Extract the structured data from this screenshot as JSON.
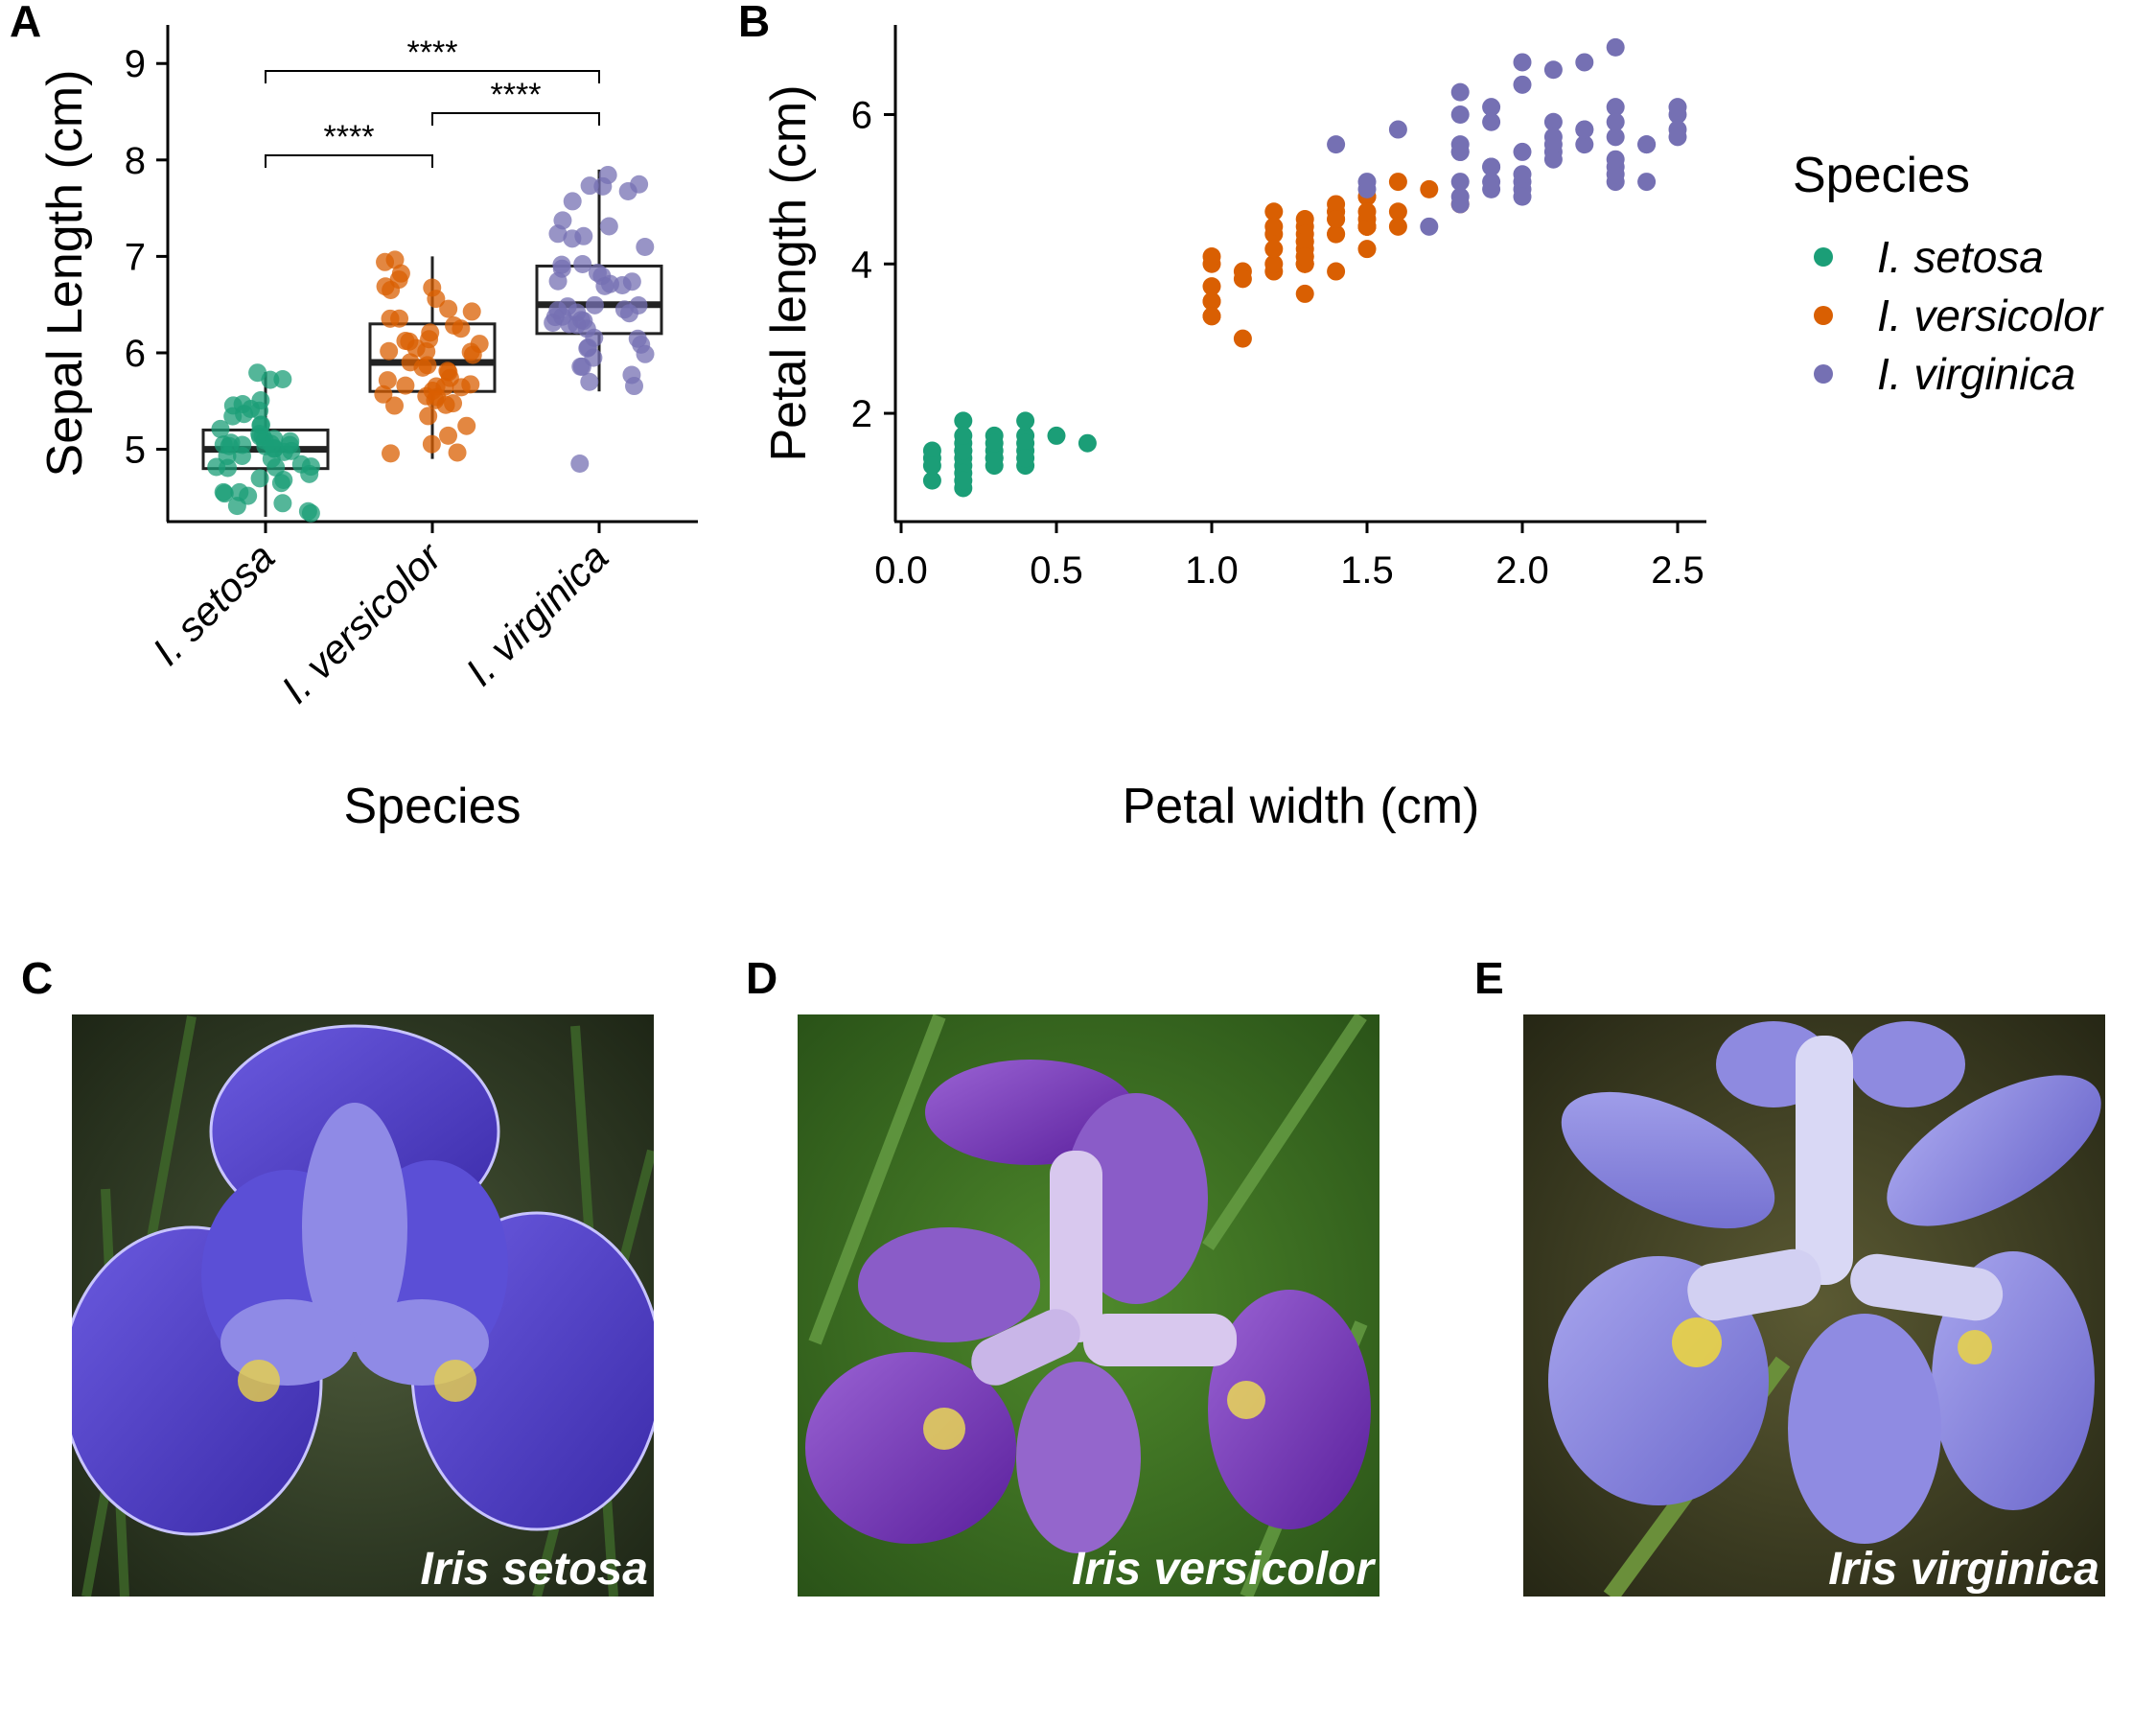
{
  "colors": {
    "setosa": "#1b9e77",
    "versicolor": "#d95f02",
    "virginica": "#7570b3"
  },
  "chart_data": [
    {
      "type": "box",
      "panel": "A",
      "xlabel": "Species",
      "ylabel": "Sepal Length (cm)",
      "ylim": [
        4.25,
        9.4
      ],
      "yticks": [
        5,
        6,
        7,
        8,
        9
      ],
      "grid": false,
      "categories": [
        "I. setosa",
        "I. versicolor",
        "I. virginica"
      ],
      "boxes": [
        {
          "min": 4.3,
          "q1": 4.8,
          "median": 5.0,
          "q3": 5.2,
          "max": 5.8
        },
        {
          "min": 4.9,
          "q1": 5.6,
          "median": 5.9,
          "q3": 6.3,
          "max": 7.0
        },
        {
          "min": 5.6,
          "q1": 6.2,
          "median": 6.5,
          "q3": 6.9,
          "max": 7.9
        }
      ],
      "outliers": [
        {
          "category": "I. virginica",
          "value": 4.9
        }
      ],
      "points": [
        [
          5.1,
          4.9,
          4.7,
          4.6,
          5.0,
          5.4,
          4.6,
          5.0,
          4.4,
          4.9,
          5.4,
          4.8,
          4.8,
          4.3,
          5.8,
          5.7,
          5.4,
          5.1,
          5.7,
          5.1,
          5.4,
          5.1,
          4.6,
          5.1,
          4.8,
          5.0,
          5.0,
          5.2,
          5.2,
          4.7,
          4.8,
          5.4,
          5.2,
          5.5,
          4.9,
          5.0,
          5.5,
          4.9,
          4.4,
          5.1,
          5.0,
          4.5,
          4.4,
          5.0,
          5.1,
          4.8,
          5.1,
          4.6,
          5.3,
          5.0
        ],
        [
          7.0,
          6.4,
          6.9,
          5.5,
          6.5,
          5.7,
          6.3,
          4.9,
          6.6,
          5.2,
          5.0,
          5.9,
          6.0,
          6.1,
          5.6,
          6.7,
          5.6,
          5.8,
          6.2,
          5.6,
          5.9,
          6.1,
          6.3,
          6.1,
          6.4,
          6.6,
          6.8,
          6.7,
          6.0,
          5.7,
          5.5,
          5.5,
          5.8,
          6.0,
          5.4,
          6.0,
          6.7,
          6.3,
          5.6,
          5.5,
          5.5,
          6.1,
          5.8,
          5.0,
          5.6,
          5.7,
          5.7,
          6.2,
          5.1,
          5.7
        ],
        [
          6.3,
          5.8,
          7.1,
          6.3,
          6.5,
          7.6,
          4.9,
          7.3,
          6.7,
          7.2,
          6.5,
          6.4,
          6.8,
          5.7,
          5.8,
          6.4,
          6.5,
          7.7,
          7.7,
          6.0,
          6.9,
          5.6,
          7.7,
          6.3,
          6.7,
          7.2,
          6.2,
          6.1,
          6.4,
          7.2,
          7.4,
          7.9,
          6.4,
          6.3,
          6.1,
          7.7,
          6.3,
          6.4,
          6.0,
          6.9,
          6.7,
          6.9,
          5.8,
          6.8,
          6.7,
          6.7,
          6.3,
          6.5,
          6.2,
          5.9
        ]
      ],
      "comparisons": [
        {
          "from": "I. setosa",
          "to": "I. versicolor",
          "label": "****"
        },
        {
          "from": "I. versicolor",
          "to": "I. virginica",
          "label": "****"
        },
        {
          "from": "I. setosa",
          "to": "I. virginica",
          "label": "****"
        }
      ]
    },
    {
      "type": "scatter",
      "panel": "B",
      "xlabel": "Petal width (cm)",
      "ylabel": "Petal length (cm)",
      "xlim": [
        -0.01,
        2.62
      ],
      "ylim": [
        0.55,
        7.2
      ],
      "xticks": [
        "0.0",
        "0.5",
        "1.0",
        "1.5",
        "2.0",
        "2.5"
      ],
      "yticks": [
        2,
        4,
        6
      ],
      "grid": false,
      "legend": {
        "title": "Species",
        "placement": "right",
        "entries": [
          "I. setosa",
          "I. versicolor",
          "I. virginica"
        ]
      },
      "series": [
        {
          "name": "I. setosa",
          "points": [
            [
              0.2,
              1.4
            ],
            [
              0.2,
              1.3
            ],
            [
              0.2,
              1.5
            ],
            [
              0.4,
              1.7
            ],
            [
              0.3,
              1.4
            ],
            [
              0.2,
              1.6
            ],
            [
              0.1,
              1.5
            ],
            [
              0.1,
              1.1
            ],
            [
              0.2,
              1.2
            ],
            [
              0.4,
              1.5
            ],
            [
              0.4,
              1.3
            ],
            [
              0.3,
              1.7
            ],
            [
              0.3,
              1.5
            ],
            [
              0.2,
              1.0
            ],
            [
              0.5,
              1.7
            ],
            [
              0.2,
              1.9
            ],
            [
              0.4,
              1.6
            ],
            [
              0.2,
              1.5
            ],
            [
              0.1,
              1.4
            ],
            [
              0.6,
              1.6
            ],
            [
              0.3,
              1.3
            ],
            [
              0.2,
              1.1
            ],
            [
              0.1,
              1.3
            ],
            [
              0.3,
              1.4
            ],
            [
              0.2,
              1.7
            ],
            [
              0.4,
              1.9
            ],
            [
              0.3,
              1.6
            ],
            [
              0.4,
              1.4
            ]
          ]
        },
        {
          "name": "I. versicolor",
          "points": [
            [
              1.4,
              4.7
            ],
            [
              1.5,
              4.5
            ],
            [
              1.5,
              4.9
            ],
            [
              1.3,
              4.0
            ],
            [
              1.5,
              4.6
            ],
            [
              1.3,
              4.5
            ],
            [
              1.6,
              4.7
            ],
            [
              1.0,
              3.3
            ],
            [
              1.3,
              4.6
            ],
            [
              1.4,
              3.9
            ],
            [
              1.0,
              3.5
            ],
            [
              1.5,
              4.2
            ],
            [
              1.0,
              4.0
            ],
            [
              1.4,
              4.7
            ],
            [
              1.3,
              3.6
            ],
            [
              1.4,
              4.4
            ],
            [
              1.5,
              4.5
            ],
            [
              1.0,
              4.1
            ],
            [
              1.5,
              4.5
            ],
            [
              1.1,
              3.9
            ],
            [
              1.8,
              4.8
            ],
            [
              1.3,
              4.0
            ],
            [
              1.5,
              4.9
            ],
            [
              1.2,
              4.7
            ],
            [
              1.3,
              4.3
            ],
            [
              1.4,
              4.4
            ],
            [
              1.4,
              4.8
            ],
            [
              1.7,
              5.0
            ],
            [
              1.5,
              4.5
            ],
            [
              1.0,
              3.5
            ],
            [
              1.1,
              3.8
            ],
            [
              1.0,
              3.7
            ],
            [
              1.2,
              3.9
            ],
            [
              1.6,
              5.1
            ],
            [
              1.5,
              4.5
            ],
            [
              1.6,
              4.5
            ],
            [
              1.5,
              4.7
            ],
            [
              1.3,
              4.4
            ],
            [
              1.3,
              4.1
            ],
            [
              1.3,
              4.0
            ],
            [
              1.2,
              4.4
            ],
            [
              1.4,
              4.6
            ],
            [
              1.2,
              4.0
            ],
            [
              1.0,
              3.3
            ],
            [
              1.3,
              4.2
            ],
            [
              1.2,
              4.2
            ],
            [
              1.3,
              4.3
            ],
            [
              1.1,
              3.0
            ],
            [
              1.3,
              4.1
            ],
            [
              1.2,
              4.5
            ],
            [
              1.4,
              4.6
            ]
          ]
        },
        {
          "name": "I. virginica",
          "points": [
            [
              2.5,
              6.0
            ],
            [
              1.9,
              5.1
            ],
            [
              2.1,
              5.9
            ],
            [
              1.8,
              5.6
            ],
            [
              2.2,
              5.8
            ],
            [
              2.1,
              6.6
            ],
            [
              1.7,
              4.5
            ],
            [
              1.8,
              6.3
            ],
            [
              2.5,
              5.8
            ],
            [
              2.0,
              5.1
            ],
            [
              1.9,
              5.3
            ],
            [
              2.1,
              5.5
            ],
            [
              2.0,
              5.0
            ],
            [
              2.4,
              5.1
            ],
            [
              2.3,
              5.3
            ],
            [
              1.8,
              5.5
            ],
            [
              2.2,
              6.7
            ],
            [
              2.3,
              6.9
            ],
            [
              1.5,
              5.0
            ],
            [
              2.3,
              5.7
            ],
            [
              2.0,
              4.9
            ],
            [
              2.0,
              6.7
            ],
            [
              1.8,
              4.9
            ],
            [
              2.1,
              5.7
            ],
            [
              1.8,
              6.0
            ],
            [
              1.8,
              4.8
            ],
            [
              1.6,
              5.8
            ],
            [
              1.9,
              6.1
            ],
            [
              2.0,
              6.4
            ],
            [
              2.2,
              5.6
            ],
            [
              1.5,
              5.1
            ],
            [
              1.4,
              5.6
            ],
            [
              2.3,
              6.1
            ],
            [
              2.4,
              5.6
            ],
            [
              1.8,
              5.5
            ],
            [
              2.1,
              5.4
            ],
            [
              2.4,
              5.6
            ],
            [
              2.3,
              5.1
            ],
            [
              1.9,
              5.9
            ],
            [
              2.5,
              5.7
            ],
            [
              2.3,
              5.2
            ],
            [
              1.9,
              5.0
            ],
            [
              2.0,
              5.2
            ],
            [
              2.3,
              5.4
            ],
            [
              1.8,
              5.1
            ],
            [
              2.2,
              5.8
            ],
            [
              1.9,
              5.3
            ],
            [
              2.0,
              5.5
            ],
            [
              2.1,
              5.6
            ],
            [
              2.5,
              6.1
            ],
            [
              2.3,
              5.9
            ]
          ]
        }
      ]
    }
  ],
  "photos": [
    {
      "panel": "C",
      "caption": "Iris setosa",
      "tone": "deep-blue"
    },
    {
      "panel": "D",
      "caption": "Iris versicolor",
      "tone": "purple"
    },
    {
      "panel": "E",
      "caption": "Iris virginica",
      "tone": "lavender"
    }
  ]
}
